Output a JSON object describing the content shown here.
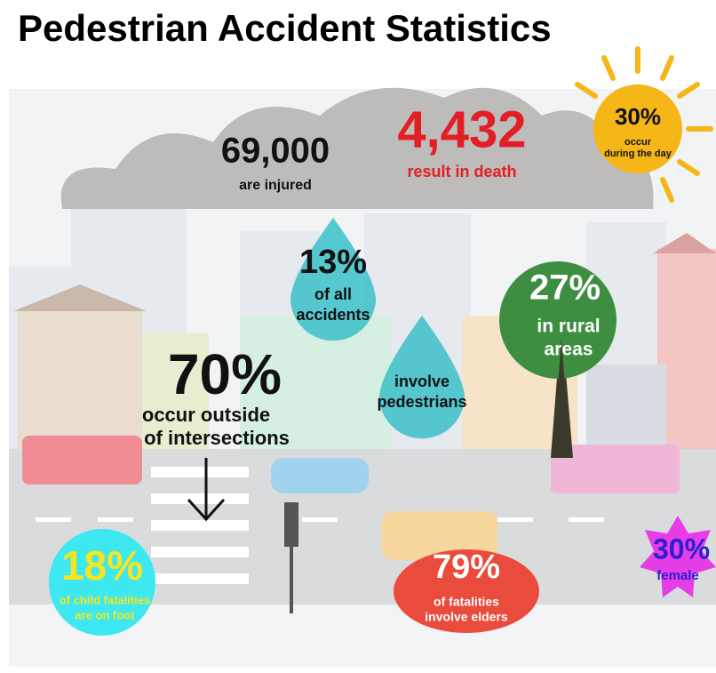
{
  "header": {
    "title": "Pedestrian Accident Statistics"
  },
  "stats": {
    "injured": {
      "value": "69,000",
      "label": [
        "are injured"
      ]
    },
    "deaths": {
      "value": "4,432",
      "label": [
        "result in death"
      ]
    },
    "daytime": {
      "value": "30%",
      "label": [
        "occur",
        "during the day"
      ]
    },
    "share": {
      "value": "13%",
      "label": [
        "of all",
        "accidents"
      ]
    },
    "involve": {
      "label": [
        "involve",
        "pedestrians"
      ]
    },
    "rural": {
      "value": "27%",
      "label": [
        "in rural",
        "areas"
      ]
    },
    "outside": {
      "value": "70%",
      "label": [
        "occur outside",
        "of intersections"
      ]
    },
    "children": {
      "value": "18%",
      "label": [
        "of child fatalities",
        "are on foot"
      ]
    },
    "elders": {
      "value": "79%",
      "label": [
        "of fatalities",
        "involve elders"
      ]
    },
    "female": {
      "value": "30%",
      "label": [
        "female"
      ]
    }
  }
}
